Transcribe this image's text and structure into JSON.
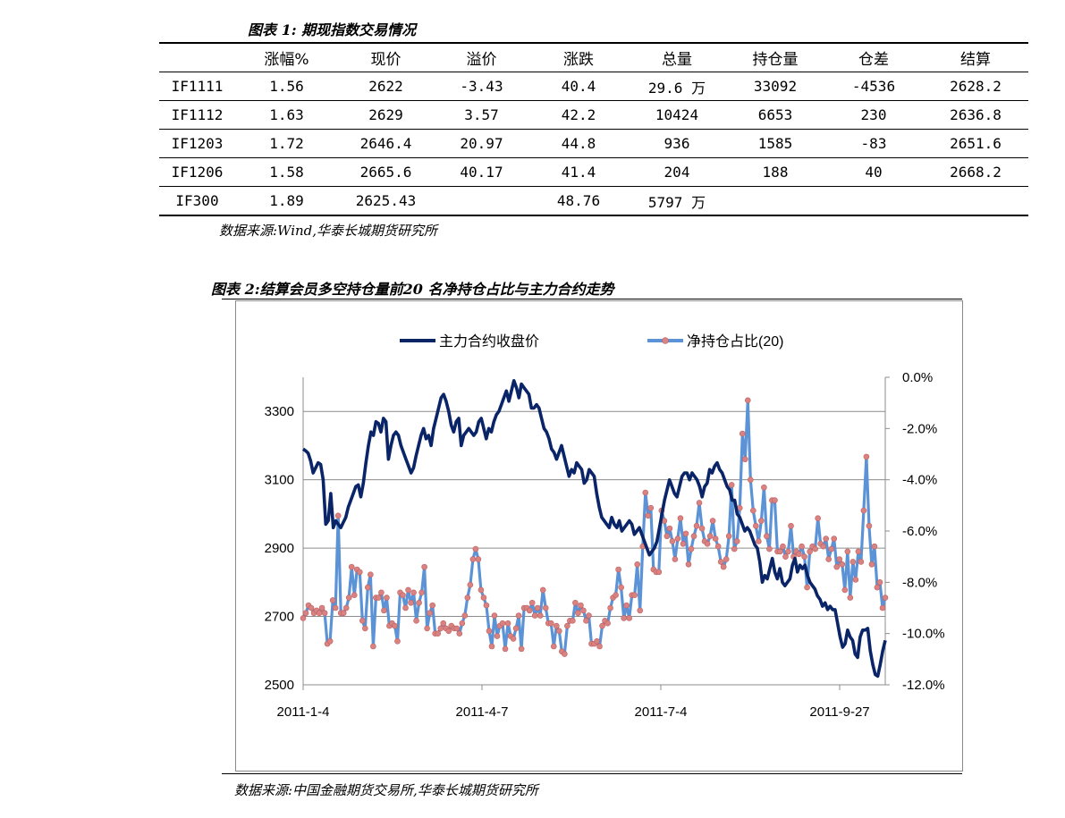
{
  "table1": {
    "caption": "图表 1:  期现指数交易情况",
    "headers": [
      "",
      "涨幅%",
      "现价",
      "溢价",
      "涨跌",
      "总量",
      "持仓量",
      "仓差",
      "结算"
    ],
    "rows": [
      [
        "IF1111",
        "1.56",
        "2622",
        "-3.43",
        "40.4",
        "29.6 万",
        "33092",
        "-4536",
        "2628.2"
      ],
      [
        "IF1112",
        "1.63",
        "2629",
        "3.57",
        "42.2",
        "10424",
        "6653",
        "230",
        "2636.8"
      ],
      [
        "IF1203",
        "1.72",
        "2646.4",
        "20.97",
        "44.8",
        "936",
        "1585",
        "-83",
        "2651.6"
      ],
      [
        "IF1206",
        "1.58",
        "2665.6",
        "40.17",
        "41.4",
        "204",
        "188",
        "40",
        "2668.2"
      ],
      [
        "IF300",
        "1.89",
        "2625.43",
        "",
        "48.76",
        "5797 万",
        "",
        "",
        ""
      ]
    ],
    "source": "数据来源:Wind,华泰长城期货研究所"
  },
  "chart_section": {
    "caption": "图表 2:结算会员多空持仓量前20 名净持仓占比与主力合约走势",
    "source": "数据来源:中国金融期货交易所,华泰长城期货研究所"
  },
  "chart_data": {
    "type": "line",
    "x_tick_labels": [
      "2011-1-4",
      "2011-4-7",
      "2011-7-4",
      "2011-9-27"
    ],
    "y_left": {
      "ticks": [
        "2500",
        "2700",
        "2900",
        "3100",
        "3300"
      ],
      "range": [
        2500,
        3400
      ]
    },
    "y_right": {
      "ticks": [
        "0.0%",
        "-2.0%",
        "-4.0%",
        "-6.0%",
        "-8.0%",
        "-10.0%",
        "-12.0%"
      ],
      "range": [
        -12.0,
        0.0
      ]
    },
    "grid": true,
    "legend_position": "top",
    "series": [
      {
        "name": "主力合约收盘价",
        "axis": "left",
        "color": "#0a2468",
        "values": [
          3190,
          3185,
          3178,
          3155,
          3120,
          3135,
          3150,
          3145,
          3100,
          2970,
          2980,
          3060,
          2960,
          2980,
          2970,
          2960,
          2975,
          2990,
          3020,
          3040,
          3060,
          3080,
          3085,
          3050,
          3090,
          3150,
          3200,
          3240,
          3230,
          3270,
          3265,
          3240,
          3280,
          3270,
          3160,
          3200,
          3230,
          3240,
          3230,
          3200,
          3180,
          3160,
          3140,
          3120,
          3135,
          3170,
          3200,
          3230,
          3250,
          3220,
          3230,
          3200,
          3250,
          3280,
          3310,
          3340,
          3350,
          3330,
          3300,
          3260,
          3240,
          3270,
          3280,
          3200,
          3230,
          3240,
          3250,
          3240,
          3230,
          3240,
          3270,
          3280,
          3250,
          3220,
          3250,
          3240,
          3270,
          3290,
          3300,
          3320,
          3340,
          3360,
          3330,
          3360,
          3390,
          3370,
          3340,
          3380,
          3370,
          3360,
          3350,
          3310,
          3310,
          3320,
          3310,
          3280,
          3250,
          3240,
          3220,
          3190,
          3180,
          3160,
          3180,
          3200,
          3170,
          3140,
          3110,
          3130,
          3120,
          3150,
          3140,
          3130,
          3090,
          3100,
          3130,
          3120,
          3110,
          3060,
          3020,
          2990,
          2980,
          2970,
          2960,
          2990,
          2970,
          2960,
          2980,
          2950,
          2960,
          2970,
          2980,
          2970,
          2940,
          2950,
          2960,
          2940,
          2920,
          2900,
          2880,
          2890,
          2900,
          2920,
          2960,
          3000,
          3040,
          3070,
          3100,
          3080,
          3060,
          3050,
          3080,
          3110,
          3120,
          3120,
          3100,
          3120,
          3110,
          3100,
          3080,
          3050,
          3080,
          3090,
          3130,
          3120,
          3140,
          3150,
          3130,
          3120,
          3100,
          3080,
          3070,
          3040,
          3040,
          3000,
          2990,
          2970,
          2950,
          2960,
          2950,
          2930,
          2910,
          2900,
          2860,
          2800,
          2820,
          2810,
          2840,
          2870,
          2830,
          2810,
          2840,
          2800,
          2790,
          2800,
          2810,
          2850,
          2870,
          2830,
          2850,
          2840,
          2850,
          2820,
          2800,
          2790,
          2780,
          2760,
          2750,
          2730,
          2740,
          2720,
          2730,
          2720,
          2720,
          2680,
          2640,
          2610,
          2620,
          2660,
          2640,
          2630,
          2590,
          2580,
          2640,
          2660,
          2660,
          2665,
          2600,
          2560,
          2530,
          2525,
          2560,
          2600,
          2630
        ]
      },
      {
        "name": "净持仓占比(20)",
        "axis": "right",
        "color": "#5b93d6",
        "marker_color": "#d98282",
        "values": [
          -9.4,
          -9.2,
          -8.9,
          -9.0,
          -9.2,
          -9.1,
          -9.2,
          -9.0,
          -9.2,
          -10.4,
          -10.3,
          -8.7,
          -9.0,
          -5.4,
          -9.2,
          -9.2,
          -9.0,
          -8.6,
          -7.4,
          -8.5,
          -7.5,
          -7.6,
          -9.5,
          -9.8,
          -8.2,
          -7.7,
          -10.5,
          -8.6,
          -8.6,
          -8.4,
          -9.1,
          -8.6,
          -9.7,
          -9.6,
          -9.7,
          -10.3,
          -8.4,
          -8.5,
          -9.0,
          -8.3,
          -8.8,
          -8.4,
          -9.5,
          -8.8,
          -8.4,
          -7.4,
          -9.8,
          -9.2,
          -8.9,
          -10.0,
          -10.0,
          -9.8,
          -9.6,
          -9.8,
          -9.9,
          -9.7,
          -9.8,
          -9.8,
          -10.0,
          -9.6,
          -9.3,
          -8.6,
          -8.1,
          -7.1,
          -6.7,
          -7.1,
          -8.3,
          -8.6,
          -8.9,
          -9.9,
          -10.5,
          -9.3,
          -10.1,
          -9.7,
          -9.6,
          -10.6,
          -9.6,
          -10.1,
          -10.2,
          -9.8,
          -9.3,
          -10.6,
          -9.0,
          -9.0,
          -9.1,
          -8.8,
          -9.3,
          -9.0,
          -9.3,
          -8.3,
          -9.0,
          -9.6,
          -9.6,
          -10.5,
          -9.7,
          -9.9,
          -10.7,
          -10.8,
          -9.7,
          -9.5,
          -9.5,
          -8.8,
          -9.2,
          -8.9,
          -9.1,
          -9.5,
          -9.3,
          -10.4,
          -10.4,
          -10.3,
          -10.5,
          -9.7,
          -9.5,
          -9.6,
          -9.0,
          -8.6,
          -8.5,
          -7.5,
          -8.2,
          -9.4,
          -8.9,
          -9.4,
          -8.5,
          -8.5,
          -7.3,
          -9.1,
          -6.6,
          -4.5,
          -5.4,
          -5.1,
          -7.5,
          -7.6,
          -7.6,
          -5.2,
          -5.6,
          -6.2,
          -5.9,
          -6.4,
          -7.1,
          -6.3,
          -5.5,
          -6.5,
          -6.1,
          -7.3,
          -6.7,
          -6.2,
          -5.8,
          -4.9,
          -5.9,
          -6.4,
          -6.5,
          -6.2,
          -5.6,
          -6.3,
          -6.6,
          -7.2,
          -7.4,
          -7.1,
          -6.2,
          -4.2,
          -6.7,
          -6.4,
          -5.1,
          -2.2,
          -3.2,
          -0.9,
          -4.0,
          -5.2,
          -5.8,
          -6.4,
          -5.6,
          -4.3,
          -6.2,
          -6.7,
          -4.8,
          -4.8,
          -6.8,
          -6.8,
          -6.6,
          -7.0,
          -6.8,
          -5.8,
          -7.0,
          -6.8,
          -6.9,
          -6.6,
          -7.0,
          -8.2,
          -6.8,
          -6.6,
          -6.7,
          -5.5,
          -6.5,
          -6.6,
          -6.3,
          -7.1,
          -6.7,
          -6.3,
          -7.4,
          -7.1,
          -7.3,
          -8.3,
          -6.8,
          -8.6,
          -7.2,
          -7.9,
          -6.8,
          -7.2,
          -5.2,
          -3.1,
          -5.8,
          -7.3,
          -6.6,
          -8.2,
          -8.0,
          -9.0,
          -8.6
        ]
      }
    ]
  }
}
